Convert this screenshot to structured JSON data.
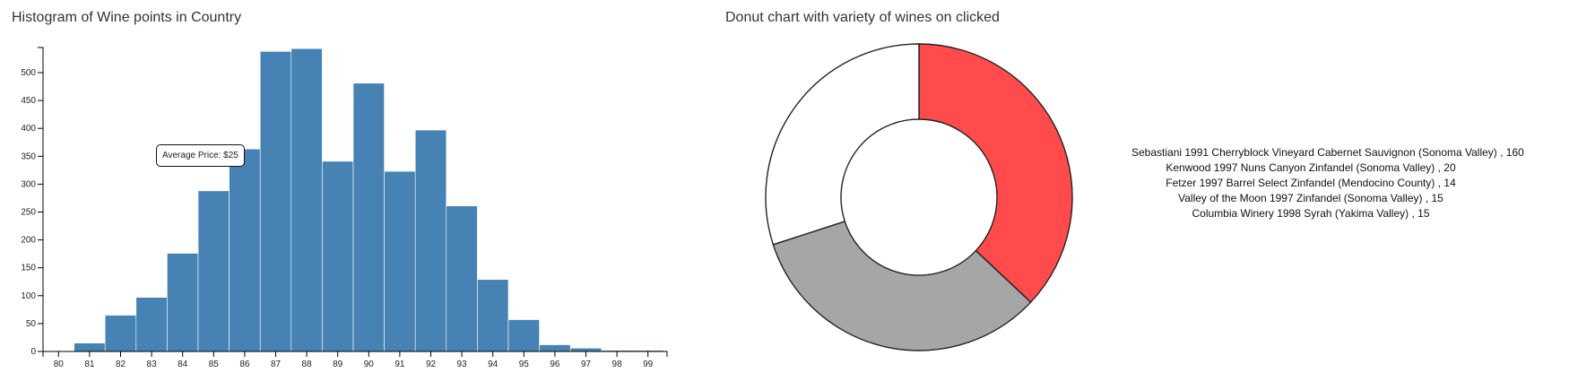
{
  "histogram": {
    "title": "Histogram of Wine points in Country",
    "tooltip": "Average Price: $25"
  },
  "donut": {
    "title": "Donut chart with variety of wines on clicked"
  },
  "chart_data": [
    {
      "type": "bar",
      "categories": [
        "80",
        "81",
        "82",
        "83",
        "84",
        "85",
        "86",
        "87",
        "88",
        "89",
        "90",
        "91",
        "92",
        "93",
        "94",
        "95",
        "96",
        "97",
        "98",
        "99"
      ],
      "values": [
        0,
        15,
        65,
        97,
        176,
        288,
        363,
        538,
        543,
        341,
        481,
        323,
        397,
        261,
        129,
        57,
        12,
        6,
        2,
        2
      ],
      "yticks": [
        0,
        50,
        100,
        150,
        200,
        250,
        300,
        350,
        400,
        450,
        500
      ],
      "ylim": [
        0,
        545
      ],
      "title": "Histogram of Wine points in Country",
      "xlabel": "",
      "ylabel": "",
      "bar_color": "#4682b4"
    },
    {
      "type": "pie",
      "title": "Donut chart with variety of wines on clicked",
      "slices": [
        {
          "label": "",
          "value": 37,
          "color": "#ff4b4b"
        },
        {
          "label": "",
          "value": 33,
          "color": "#a6a6a6"
        },
        {
          "label": "",
          "value": 30,
          "color": "#ffffff"
        }
      ],
      "legend": [
        "Sebastiani 1991 Cherryblock Vineyard Cabernet Sauvignon (Sonoma Valley) , 160",
        "Kenwood 1997 Nuns Canyon Zinfandel (Sonoma Valley) , 20",
        "Fetzer 1997 Barrel Select Zinfandel (Mendocino County) , 14",
        "Valley of the Moon 1997 Zinfandel (Sonoma Valley) , 15",
        "Columbia Winery 1998 Syrah (Yakima Valley) , 15"
      ]
    }
  ]
}
